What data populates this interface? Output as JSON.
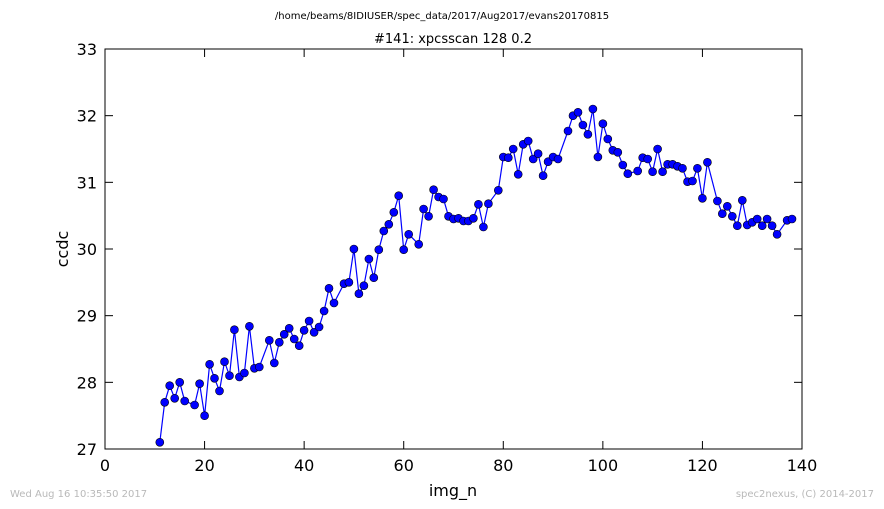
{
  "header": {
    "path": "/home/beams/8IDIUSER/spec_data/2017/Aug2017/evans20170815"
  },
  "footer": {
    "timestamp": "Wed Aug 16 10:35:50 2017",
    "credit": "spec2nexus, (C) 2014-2017"
  },
  "colors": {
    "series": "#0000ff",
    "axis": "#000000",
    "footer_text": "#b9b9b9"
  },
  "chart_data": {
    "type": "line",
    "title": "#141: xpcsscan 128 0.2",
    "xlabel": "img_n",
    "ylabel": "ccdc",
    "xlim": [
      0,
      140
    ],
    "ylim": [
      27,
      33
    ],
    "xticks": [
      0,
      20,
      40,
      60,
      80,
      100,
      120,
      140
    ],
    "yticks": [
      27,
      28,
      29,
      30,
      31,
      32,
      33
    ],
    "grid": false,
    "markers": "circle",
    "x": [
      11,
      12,
      13,
      14,
      15,
      16,
      18,
      19,
      20,
      21,
      22,
      23,
      24,
      25,
      26,
      27,
      28,
      29,
      30,
      31,
      33,
      34,
      35,
      36,
      37,
      38,
      39,
      40,
      41,
      42,
      43,
      44,
      45,
      46,
      48,
      49,
      50,
      51,
      52,
      53,
      54,
      55,
      56,
      57,
      58,
      59,
      60,
      61,
      63,
      64,
      65,
      66,
      67,
      68,
      69,
      70,
      71,
      72,
      73,
      74,
      75,
      76,
      77,
      79,
      80,
      81,
      82,
      83,
      84,
      85,
      86,
      87,
      88,
      89,
      90,
      91,
      93,
      94,
      95,
      96,
      97,
      98,
      99,
      100,
      101,
      102,
      103,
      104,
      105,
      107,
      108,
      109,
      110,
      111,
      112,
      113,
      114,
      115,
      116,
      117,
      118,
      119,
      120,
      121,
      123,
      124,
      125,
      126,
      127,
      128,
      129,
      130,
      131,
      132,
      133,
      134,
      135,
      137,
      138
    ],
    "y": [
      27.1,
      27.7,
      27.95,
      27.76,
      28.0,
      27.72,
      27.66,
      27.98,
      27.5,
      28.27,
      28.06,
      27.87,
      28.31,
      28.1,
      28.79,
      28.08,
      28.14,
      28.84,
      28.21,
      28.23,
      28.63,
      28.29,
      28.6,
      28.72,
      28.81,
      28.65,
      28.55,
      28.78,
      28.92,
      28.75,
      28.83,
      29.07,
      29.41,
      29.19,
      29.48,
      29.5,
      30.0,
      29.33,
      29.45,
      29.85,
      29.57,
      29.99,
      30.27,
      30.37,
      30.55,
      30.8,
      29.99,
      30.22,
      30.07,
      30.6,
      30.49,
      30.89,
      30.78,
      30.75,
      30.49,
      30.45,
      30.46,
      30.42,
      30.42,
      30.46,
      30.67,
      30.33,
      30.68,
      30.88,
      31.38,
      31.37,
      31.5,
      31.12,
      31.57,
      31.62,
      31.35,
      31.43,
      31.1,
      31.31,
      31.38,
      31.35,
      31.77,
      32.0,
      32.05,
      31.86,
      31.72,
      32.1,
      31.38,
      31.88,
      31.65,
      31.48,
      31.45,
      31.26,
      31.13,
      31.17,
      31.37,
      31.35,
      31.16,
      31.5,
      31.16,
      31.27,
      31.27,
      31.24,
      31.21,
      31.01,
      31.02,
      31.21,
      30.76,
      31.3,
      30.72,
      30.53,
      30.64,
      30.49,
      30.35,
      30.73,
      30.36,
      30.4,
      30.45,
      30.35,
      30.45,
      30.35,
      30.22,
      30.43,
      30.45
    ]
  }
}
